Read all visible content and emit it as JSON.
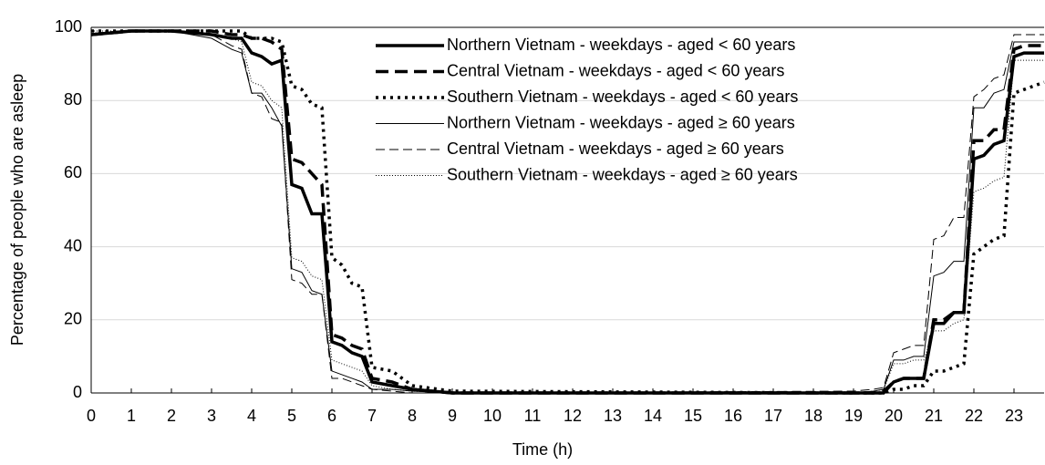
{
  "chart_data": {
    "type": "line",
    "x_label": "Time (h)",
    "y_label": "Percentage of people who are asleep",
    "x": [
      0,
      1,
      2,
      3,
      3.5,
      3.75,
      4,
      4.25,
      4.5,
      4.75,
      5,
      5.25,
      5.5,
      5.75,
      6,
      6.25,
      6.5,
      6.75,
      7,
      7.5,
      8,
      9,
      19,
      19.5,
      19.75,
      20,
      20.25,
      20.5,
      20.75,
      21,
      21.25,
      21.5,
      21.75,
      22,
      22.25,
      22.5,
      22.75,
      23,
      23.25,
      23.75
    ],
    "xlim": [
      0,
      23.75
    ],
    "xticks": [
      0,
      1,
      2,
      3,
      4,
      5,
      6,
      7,
      8,
      9,
      10,
      11,
      12,
      13,
      14,
      15,
      16,
      17,
      18,
      19,
      20,
      21,
      22,
      23
    ],
    "ylim": [
      0,
      100
    ],
    "yticks": [
      0,
      20,
      40,
      60,
      80,
      100
    ],
    "grid": true,
    "legend": "top",
    "series": [
      {
        "name": "Northern Vietnam - weekdays - aged < 60 years",
        "color": "#000000",
        "line_style": "solid",
        "line_width": 3.5,
        "values": [
          98,
          99,
          99,
          98,
          97,
          97,
          93,
          92,
          90,
          91,
          57,
          56,
          49,
          49,
          14,
          13,
          11,
          10,
          3,
          2,
          1,
          0,
          0,
          0,
          0,
          3,
          4,
          4,
          4,
          19,
          19,
          22,
          22,
          64,
          65,
          68,
          69,
          92,
          93,
          93
        ]
      },
      {
        "name": "Central Vietnam - weekdays - aged < 60 years",
        "color": "#000000",
        "line_style": "dashed",
        "line_width": 3.5,
        "values": [
          98,
          99,
          99,
          99,
          98,
          98,
          97,
          97,
          96,
          94,
          64,
          63,
          60,
          57,
          16,
          15,
          13,
          12,
          4,
          3,
          1,
          0,
          0,
          0,
          0.5,
          3,
          4,
          4,
          4,
          20,
          20,
          22,
          22,
          69,
          69,
          72,
          72,
          94,
          95,
          95
        ]
      },
      {
        "name": "Southern Vietnam - weekdays - aged < 60 years",
        "color": "#000000",
        "line_style": "dotted",
        "line_width": 3.5,
        "values": [
          99,
          99,
          99,
          99,
          99,
          99,
          97,
          97,
          97,
          96,
          84,
          83,
          79,
          78,
          37,
          35,
          30,
          29,
          7,
          6,
          2,
          0.5,
          0,
          0,
          0,
          1,
          1,
          2,
          2,
          6,
          6,
          7,
          8,
          38,
          40,
          42,
          43,
          82,
          83,
          85
        ]
      },
      {
        "name": "Northern Vietnam - weekdays - aged ≥ 60 years",
        "color": "#000000",
        "line_style": "solid",
        "line_width": 1,
        "values": [
          98,
          99,
          99,
          97,
          94,
          93,
          82,
          82,
          78,
          73,
          34,
          33,
          28,
          27,
          6,
          5,
          4,
          3,
          1,
          1,
          0.5,
          0,
          0,
          0.5,
          1,
          9,
          9,
          10,
          10,
          32,
          33,
          36,
          36,
          78,
          78,
          82,
          83,
          96,
          96,
          96
        ]
      },
      {
        "name": "Central Vietnam - weekdays - aged ≥ 60 years",
        "color": "#000000",
        "line_style": "dashed",
        "line_width": 1,
        "values": [
          98,
          99,
          99,
          98,
          95,
          94,
          82,
          81,
          75,
          74,
          31,
          30,
          27,
          27,
          4,
          4,
          3,
          2,
          1,
          0.5,
          0,
          0,
          0.5,
          1,
          1.5,
          11,
          12,
          13,
          13,
          42,
          43,
          48,
          48,
          81,
          83,
          86,
          87,
          98,
          98,
          98
        ]
      },
      {
        "name": "Southern Vietnam - weekdays - aged ≥ 60 years",
        "color": "#000000",
        "line_style": "dotted",
        "line_width": 1,
        "values": [
          99,
          99,
          99,
          98,
          97,
          96,
          85,
          84,
          80,
          78,
          37,
          36,
          32,
          31,
          9,
          8,
          7,
          6,
          2,
          1,
          0.5,
          0,
          0,
          0.5,
          1,
          8,
          8,
          9,
          9,
          17,
          17,
          19,
          20,
          55,
          56,
          58,
          59,
          91,
          91,
          91
        ]
      }
    ]
  }
}
